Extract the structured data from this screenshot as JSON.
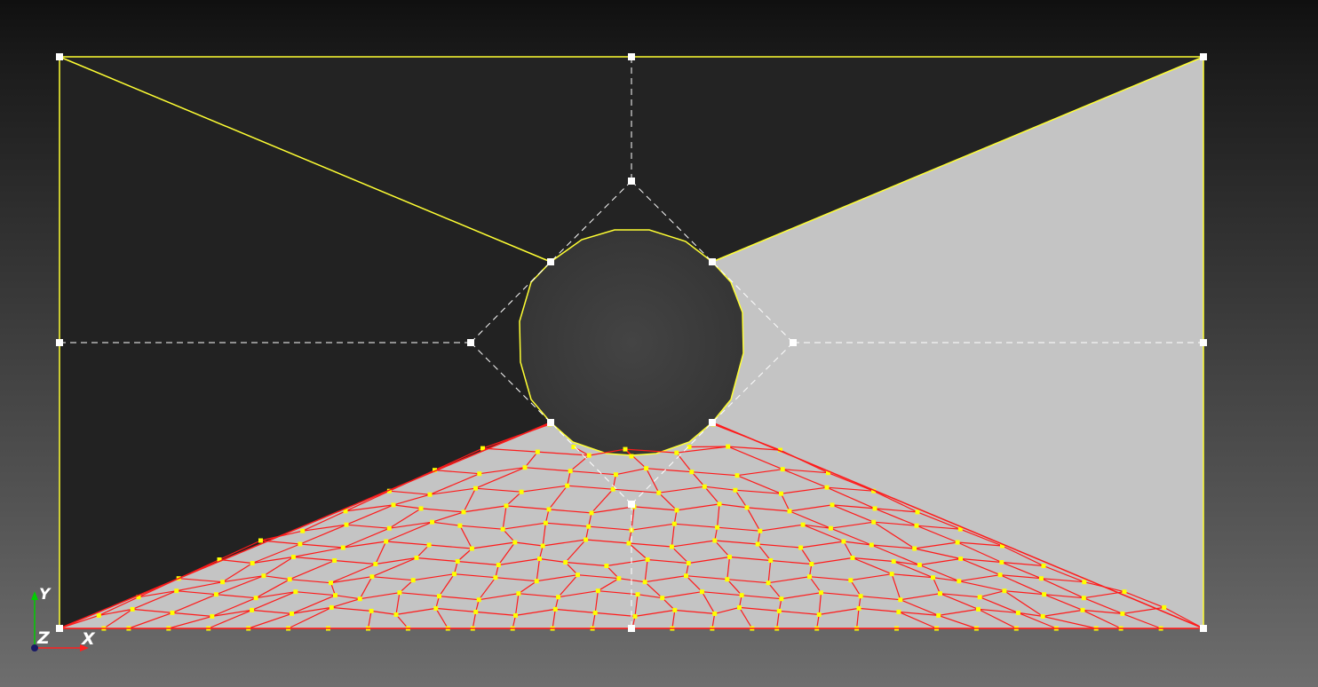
{
  "viewport": {
    "colors": {
      "face_dark": "#222222",
      "face_light": "#c4c4c4",
      "hole_fill": "#3a3a3a",
      "geometry_edge": "#ffff33",
      "virtual_edge": "#ffffff",
      "vertex": "#ffffff",
      "mesh_edge": "#ff1a1a",
      "mesh_node": "#ffff00"
    }
  },
  "axis_triad": {
    "y_label": "Y",
    "z_label": "Z",
    "x_label": "X",
    "colors": {
      "y": "#00cc00",
      "x": "#ff2020",
      "z": "#1a1a66"
    }
  }
}
